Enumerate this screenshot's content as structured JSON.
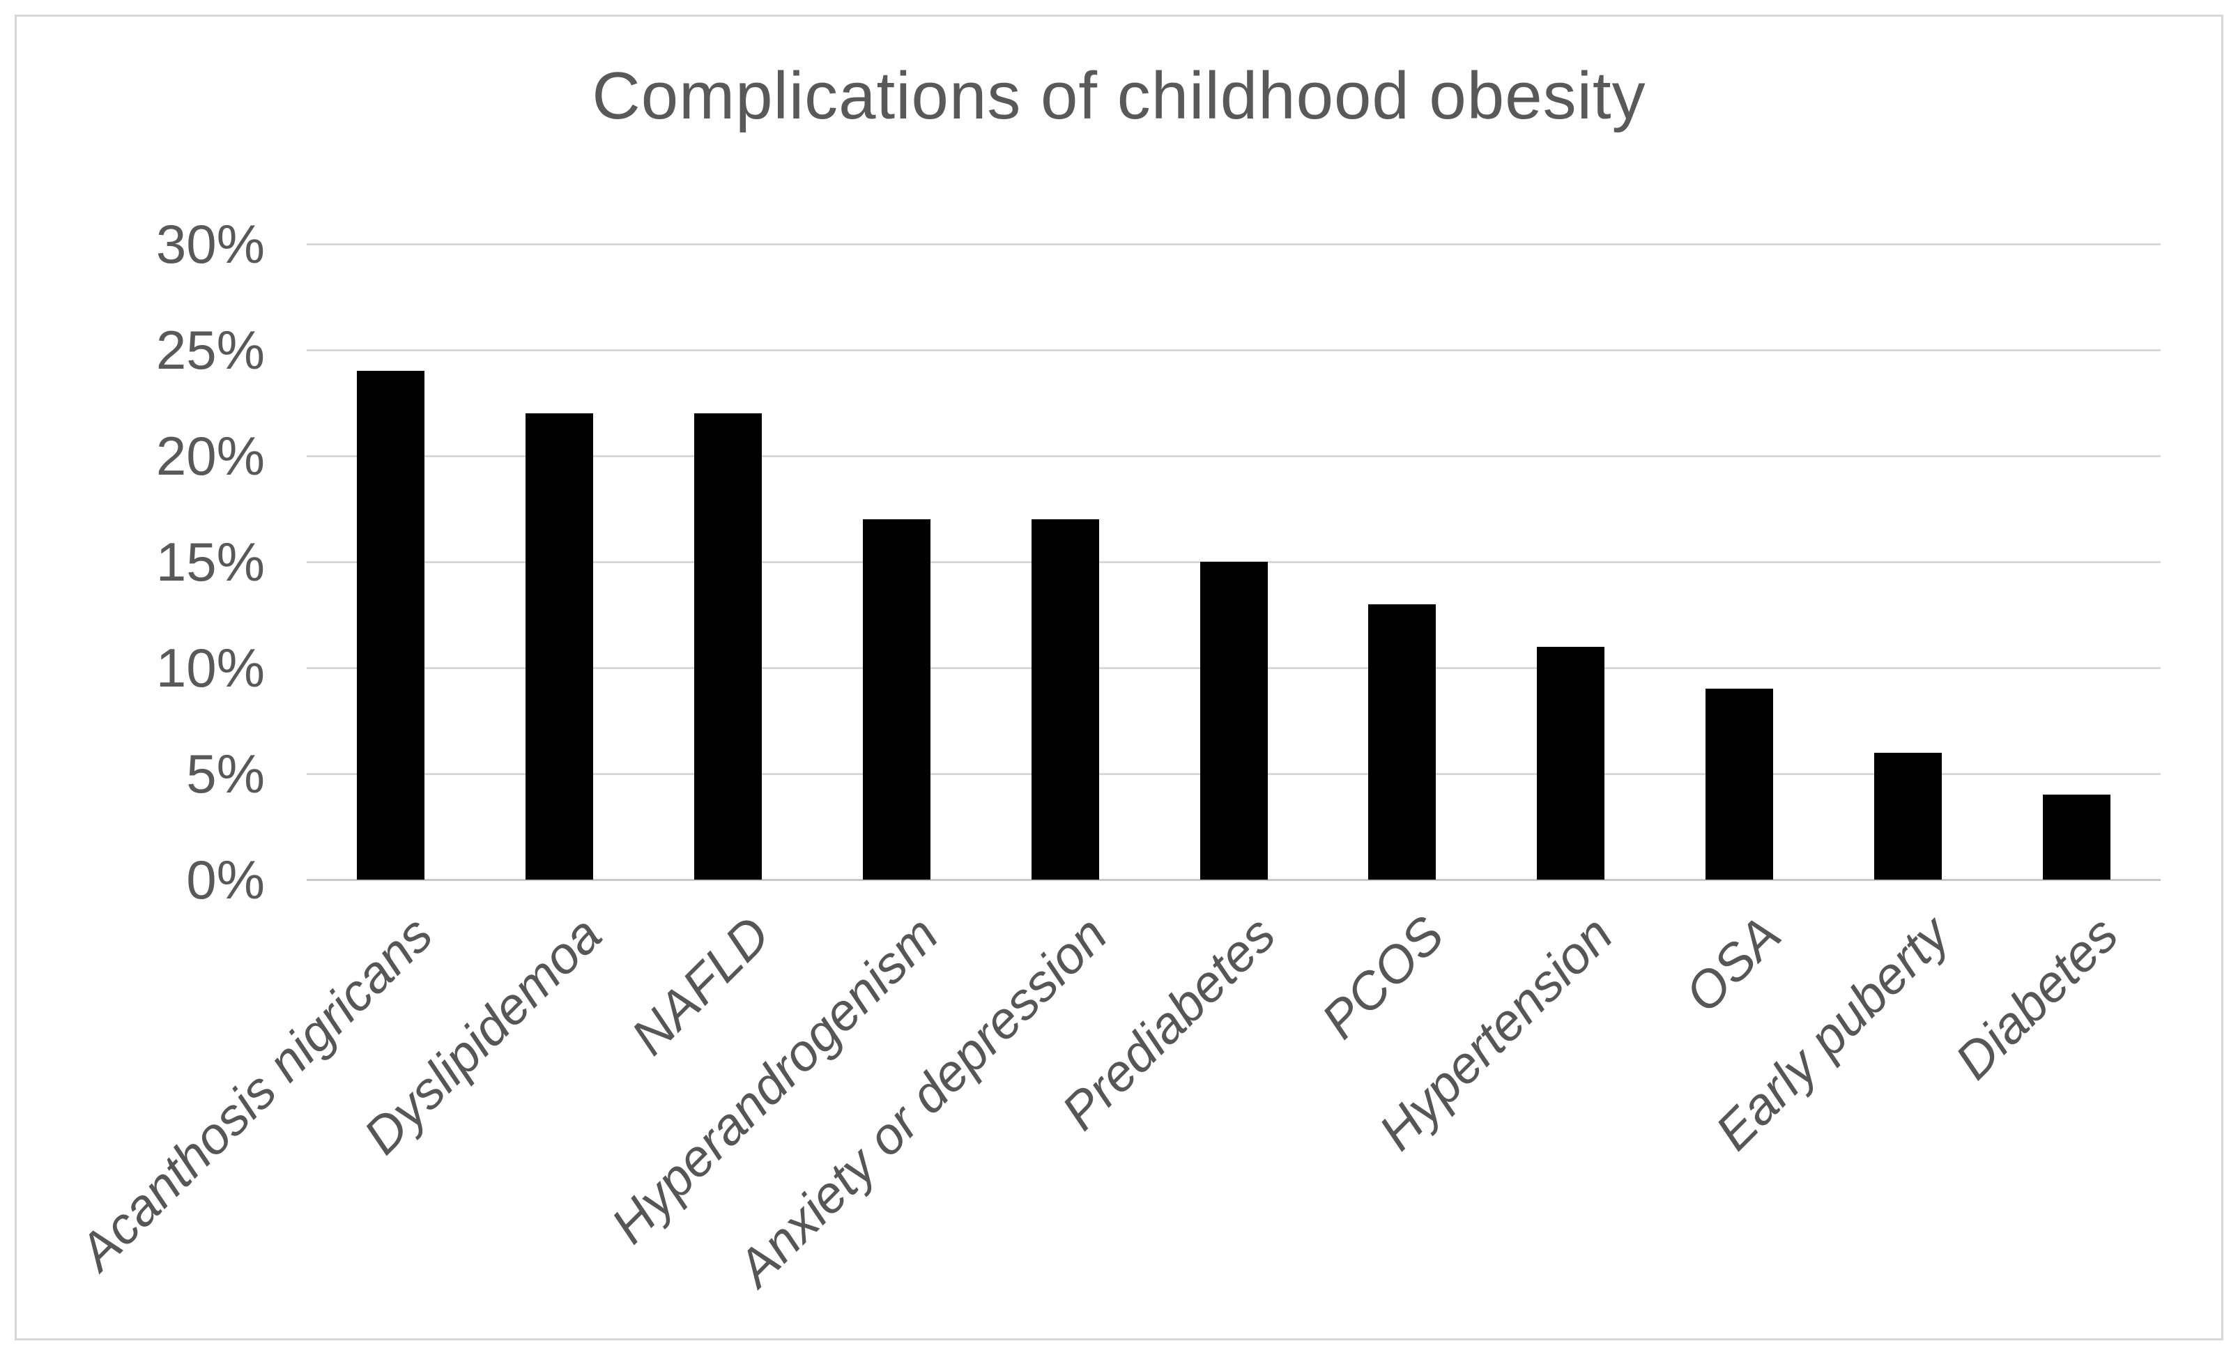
{
  "chart_data": {
    "type": "bar",
    "title": "Complications of childhood obesity",
    "categories": [
      "Acanthosis nigricans",
      "Dyslipidemoa",
      "NAFLD",
      "Hyperandrogenism",
      "Anxiety or depression",
      "Prediabetes",
      "PCOS",
      "Hypertension",
      "OSA",
      "Early puberty",
      "Diabetes"
    ],
    "values": [
      24,
      22,
      22,
      17,
      17,
      15,
      13,
      11,
      9,
      6,
      4
    ],
    "xlabel": "",
    "ylabel": "",
    "ylim": [
      0,
      30
    ],
    "y_ticks": [
      {
        "value": 0,
        "label": "0%"
      },
      {
        "value": 5,
        "label": "5%"
      },
      {
        "value": 10,
        "label": "10%"
      },
      {
        "value": 15,
        "label": "15%"
      },
      {
        "value": 20,
        "label": "20%"
      },
      {
        "value": 25,
        "label": "25%"
      },
      {
        "value": 30,
        "label": "30%"
      }
    ],
    "grid": true,
    "legend": "none",
    "bar_color": "#000000",
    "gridline_color": "#d9d9d9",
    "text_color": "#595959",
    "frame_color": "#d6d6d6",
    "background_color": "#ffffff"
  }
}
